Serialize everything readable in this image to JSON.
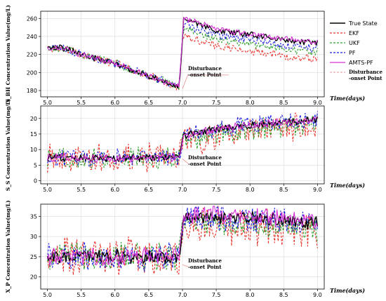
{
  "chart_data": [
    {
      "type": "line",
      "ylabel": "X_BH Concentration Value(mg/L)",
      "xlabel": "Time(days)",
      "xlim": [
        4.9,
        9.1
      ],
      "ylim": [
        173,
        268
      ],
      "xticks": [
        "5.0",
        "5.5",
        "6.0",
        "6.5",
        "7.0",
        "7.5",
        "8.0",
        "8.5",
        "9.0"
      ],
      "yticks": [
        "180",
        "200",
        "220",
        "240",
        "260"
      ],
      "grid": true,
      "disturbance_x": 7.0,
      "annotation": {
        "line1": "Disturbance",
        "line2": "-onset Point",
        "x": 7.0,
        "y": 182
      },
      "series_profile": [
        {
          "x": 5.0,
          "y": 227
        },
        {
          "x": 5.2,
          "y": 228
        },
        {
          "x": 5.5,
          "y": 220
        },
        {
          "x": 6.0,
          "y": 210
        },
        {
          "x": 6.5,
          "y": 196
        },
        {
          "x": 6.95,
          "y": 184
        },
        {
          "x": 7.02,
          "y": 260
        },
        {
          "x": 7.5,
          "y": 247
        },
        {
          "x": 8.0,
          "y": 242
        },
        {
          "x": 8.5,
          "y": 236
        },
        {
          "x": 9.0,
          "y": 233
        }
      ],
      "offsets_after_disturbance": {
        "True State": 0,
        "EKF": -18,
        "UKF": -10,
        "PF": -6,
        "AMTS-PF": 1
      },
      "noise_amplitude": {
        "True State": 3,
        "EKF": 4,
        "UKF": 4,
        "PF": 4,
        "AMTS-PF": 3
      }
    },
    {
      "type": "line",
      "ylabel": "S_S Concentration Value(mg/L)",
      "xlabel": "Time(days)",
      "xlim": [
        4.9,
        9.1
      ],
      "ylim": [
        -1,
        24
      ],
      "xticks": [
        "5.0",
        "5.5",
        "6.0",
        "6.5",
        "7.0",
        "7.5",
        "8.0",
        "8.5",
        "9.0"
      ],
      "yticks": [
        "0",
        "5",
        "10",
        "15",
        "20"
      ],
      "grid": true,
      "disturbance_x": 7.0,
      "annotation": {
        "line1": "Disturbance",
        "line2": "-onset Point",
        "x": 7.0,
        "y": 7
      },
      "series_profile": [
        {
          "x": 5.0,
          "y": 7.5
        },
        {
          "x": 6.0,
          "y": 7.2
        },
        {
          "x": 6.95,
          "y": 7.5
        },
        {
          "x": 7.02,
          "y": 14.5
        },
        {
          "x": 7.5,
          "y": 16.5
        },
        {
          "x": 8.0,
          "y": 17.8
        },
        {
          "x": 8.5,
          "y": 18.8
        },
        {
          "x": 9.0,
          "y": 19.5
        }
      ],
      "offsets_after_disturbance": {
        "True State": 0,
        "EKF": -2,
        "UKF": -1.5,
        "PF": 0,
        "AMTS-PF": 0
      },
      "noise_amplitude": {
        "True State": 1,
        "EKF": 4,
        "UKF": 3,
        "PF": 2.5,
        "AMTS-PF": 1.2
      }
    },
    {
      "type": "line",
      "ylabel": "X_P Concentration Value(mg/L)",
      "xlabel": "Time(days)",
      "xlim": [
        4.9,
        9.1
      ],
      "ylim": [
        17,
        38
      ],
      "xticks": [
        "5.0",
        "5.5",
        "6.0",
        "6.5",
        "7.0",
        "7.5",
        "8.0",
        "8.5",
        "9.0"
      ],
      "yticks": [
        "20",
        "25",
        "30",
        "35"
      ],
      "grid": true,
      "disturbance_x": 7.0,
      "annotation": {
        "line1": "Disturbance",
        "line2": "-onset Point",
        "x": 7.0,
        "y": 23
      },
      "series_profile": [
        {
          "x": 5.0,
          "y": 25
        },
        {
          "x": 6.0,
          "y": 25
        },
        {
          "x": 6.95,
          "y": 25
        },
        {
          "x": 7.02,
          "y": 35
        },
        {
          "x": 8.0,
          "y": 34.5
        },
        {
          "x": 9.0,
          "y": 33.5
        }
      ],
      "offsets_after_disturbance": {
        "True State": 0,
        "EKF": -2,
        "UKF": -1.5,
        "PF": 0,
        "AMTS-PF": 0.5
      },
      "noise_amplitude": {
        "True State": 1.5,
        "EKF": 4,
        "UKF": 3,
        "PF": 3,
        "AMTS-PF": 2
      }
    }
  ],
  "legend": {
    "position": "right",
    "items": [
      {
        "label": "True State",
        "color": "#000000",
        "dash": "solid"
      },
      {
        "label": "EKF",
        "color": "#e8312a",
        "dash": "dashed"
      },
      {
        "label": "UKF",
        "color": "#2ca02c",
        "dash": "dashed"
      },
      {
        "label": "PF",
        "color": "#1f1fe0",
        "dash": "dashed"
      },
      {
        "label": "AMTS-PF",
        "color": "#d62fd6",
        "dash": "solid"
      }
    ],
    "marker_item": {
      "line1": "Disturbance",
      "line2": "-onset Point",
      "color": "#e89090"
    }
  }
}
